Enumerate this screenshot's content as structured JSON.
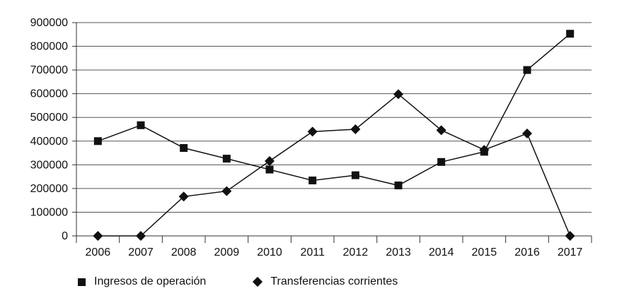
{
  "chart_data": {
    "type": "line",
    "categories": [
      "2006",
      "2007",
      "2008",
      "2009",
      "2010",
      "2011",
      "2012",
      "2013",
      "2014",
      "2015",
      "2016",
      "2017"
    ],
    "series": [
      {
        "name": "Ingresos de operación",
        "marker": "square",
        "values": [
          400000,
          467000,
          371000,
          326000,
          280000,
          234000,
          256000,
          213000,
          312000,
          355000,
          700000,
          853000
        ]
      },
      {
        "name": "Transferencias corrientes",
        "marker": "diamond",
        "values": [
          0,
          0,
          166000,
          189000,
          316000,
          440000,
          450000,
          598000,
          446000,
          363000,
          432000,
          0
        ]
      }
    ],
    "ylim": [
      0,
      900000
    ],
    "yticks": [
      "0",
      "100000",
      "200000",
      "300000",
      "400000",
      "500000",
      "600000",
      "700000",
      "800000",
      "900000"
    ],
    "grid": true,
    "legend_position": "bottom",
    "line_color": "#111111"
  }
}
